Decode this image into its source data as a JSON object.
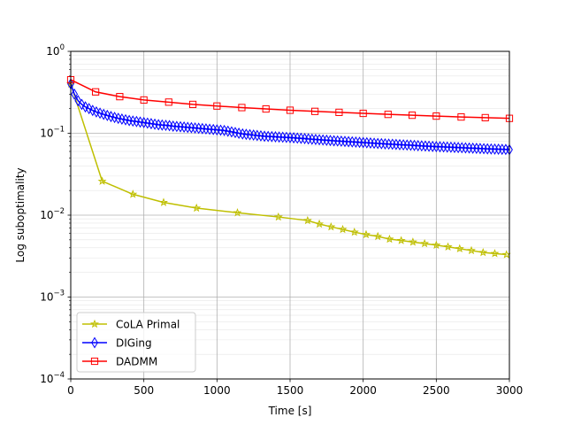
{
  "chart_data": {
    "type": "line",
    "title": "",
    "xlabel": "Time [s]",
    "ylabel": "Log suboptimality",
    "xlim": [
      0,
      3000
    ],
    "ylim": [
      0.0001,
      1
    ],
    "yscale": "log",
    "grid": true,
    "legend_position": "lower-left",
    "x_ticks": [
      {
        "value": 0,
        "label": "0"
      },
      {
        "value": 500,
        "label": "500"
      },
      {
        "value": 1000,
        "label": "1000"
      },
      {
        "value": 1500,
        "label": "1500"
      },
      {
        "value": 2000,
        "label": "2000"
      },
      {
        "value": 2500,
        "label": "2500"
      },
      {
        "value": 3000,
        "label": "3000"
      }
    ],
    "y_ticks": [
      {
        "value": 0.0001,
        "base": "10",
        "exp": "−4"
      },
      {
        "value": 0.001,
        "base": "10",
        "exp": "−3"
      },
      {
        "value": 0.01,
        "base": "10",
        "exp": "−2"
      },
      {
        "value": 0.1,
        "base": "10",
        "exp": "−1"
      },
      {
        "value": 1,
        "base": "10",
        "exp": "0"
      }
    ],
    "series": [
      {
        "name": "CoLA Primal",
        "color": "#bfbf00",
        "marker": "star",
        "x": [
          0,
          215,
          425,
          635,
          860,
          1140,
          1420,
          1620,
          1700,
          1780,
          1860,
          1940,
          2020,
          2100,
          2180,
          2260,
          2340,
          2420,
          2500,
          2580,
          2660,
          2740,
          2820,
          2900,
          2980
        ],
        "y": [
          0.4,
          0.026,
          0.018,
          0.0143,
          0.0122,
          0.0107,
          0.0095,
          0.0086,
          0.0078,
          0.0072,
          0.0067,
          0.0062,
          0.0058,
          0.0055,
          0.0051,
          0.0049,
          0.0047,
          0.0045,
          0.0043,
          0.0041,
          0.0039,
          0.0037,
          0.0035,
          0.0034,
          0.0033
        ]
      },
      {
        "name": "DIGing",
        "color": "#0000ff",
        "marker": "thin-diamond",
        "x": [
          0,
          25,
          50,
          75,
          100,
          125,
          150,
          175,
          200,
          225,
          250,
          275,
          300,
          325,
          350,
          375,
          400,
          425,
          450,
          475,
          500,
          525,
          550,
          575,
          600,
          625,
          650,
          675,
          700,
          725,
          750,
          775,
          800,
          825,
          850,
          875,
          900,
          925,
          950,
          975,
          1000,
          1025,
          1050,
          1075,
          1100,
          1125,
          1150,
          1175,
          1200,
          1225,
          1250,
          1275,
          1300,
          1325,
          1350,
          1375,
          1400,
          1425,
          1450,
          1475,
          1500,
          1525,
          1550,
          1575,
          1600,
          1625,
          1650,
          1675,
          1700,
          1725,
          1750,
          1775,
          1800,
          1825,
          1850,
          1875,
          1900,
          1925,
          1950,
          1975,
          2000,
          2025,
          2050,
          2075,
          2100,
          2125,
          2150,
          2175,
          2200,
          2225,
          2250,
          2275,
          2300,
          2325,
          2350,
          2375,
          2400,
          2425,
          2450,
          2475,
          2500,
          2525,
          2550,
          2575,
          2600,
          2625,
          2650,
          2675,
          2700,
          2725,
          2750,
          2775,
          2800,
          2825,
          2850,
          2875,
          2900,
          2925,
          2950,
          2975,
          3000
        ],
        "y": [
          0.4,
          0.3,
          0.25,
          0.225,
          0.21,
          0.2,
          0.19,
          0.182,
          0.176,
          0.17,
          0.165,
          0.16,
          0.156,
          0.152,
          0.149,
          0.146,
          0.143,
          0.141,
          0.139,
          0.137,
          0.135,
          0.133,
          0.131,
          0.129,
          0.127,
          0.126,
          0.125,
          0.124,
          0.122,
          0.121,
          0.12,
          0.119,
          0.118,
          0.117,
          0.116,
          0.115,
          0.114,
          0.113,
          0.112,
          0.111,
          0.11,
          0.109,
          0.108,
          0.106,
          0.104,
          0.102,
          0.1,
          0.098,
          0.097,
          0.096,
          0.095,
          0.094,
          0.093,
          0.092,
          0.0915,
          0.091,
          0.0905,
          0.09,
          0.0895,
          0.089,
          0.0885,
          0.088,
          0.0873,
          0.0866,
          0.086,
          0.0853,
          0.0846,
          0.084,
          0.0834,
          0.0828,
          0.0822,
          0.0816,
          0.081,
          0.0805,
          0.08,
          0.0795,
          0.079,
          0.0785,
          0.078,
          0.0775,
          0.077,
          0.0765,
          0.076,
          0.0755,
          0.075,
          0.0746,
          0.0742,
          0.0738,
          0.0734,
          0.073,
          0.0726,
          0.0722,
          0.0718,
          0.0714,
          0.071,
          0.0706,
          0.0702,
          0.0698,
          0.0694,
          0.069,
          0.0687,
          0.0684,
          0.0681,
          0.0678,
          0.0675,
          0.0672,
          0.0669,
          0.0666,
          0.0663,
          0.066,
          0.0657,
          0.0654,
          0.0651,
          0.0648,
          0.0645,
          0.0642,
          0.064,
          0.0638,
          0.0636,
          0.0634,
          0.063
        ]
      },
      {
        "name": "DADMM",
        "color": "#ff0000",
        "marker": "square",
        "x": [
          0,
          170,
          335,
          500,
          670,
          835,
          1000,
          1170,
          1335,
          1500,
          1670,
          1835,
          2000,
          2170,
          2335,
          2500,
          2670,
          2835,
          3000
        ],
        "y": [
          0.45,
          0.32,
          0.28,
          0.255,
          0.24,
          0.225,
          0.215,
          0.206,
          0.198,
          0.191,
          0.185,
          0.18,
          0.175,
          0.17,
          0.166,
          0.162,
          0.158,
          0.155,
          0.152
        ]
      }
    ]
  }
}
